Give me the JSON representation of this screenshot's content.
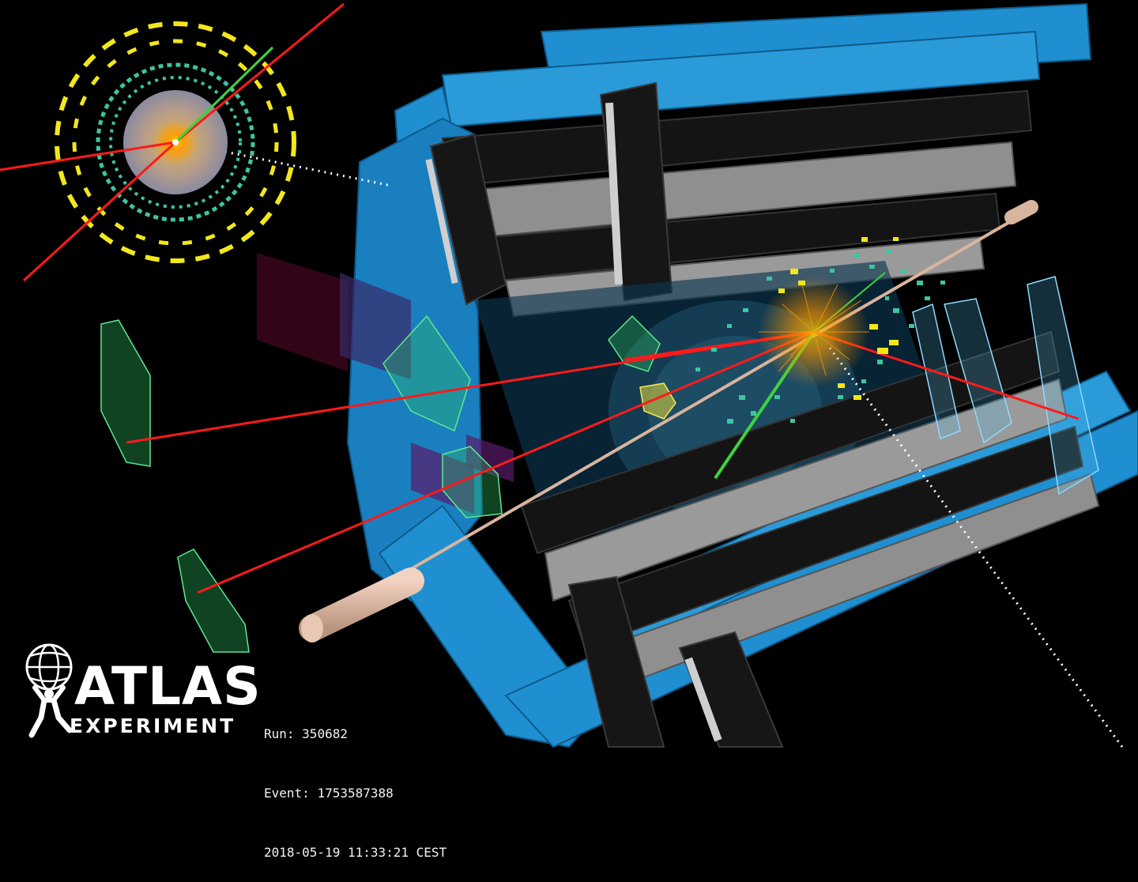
{
  "logo": {
    "name": "ATLAS",
    "subtitle": "EXPERIMENT"
  },
  "event": {
    "run_label": "Run:",
    "run_value": "350682",
    "event_label": "Event:",
    "event_value": "1753587388",
    "datetime": "2018-05-19 11:33:21 CEST"
  },
  "colors": {
    "background": "#000000",
    "detector_blue": "#1f8fd1",
    "support_black": "#141414",
    "support_grey": "#9a9a9a",
    "muon_track": "#ff1a1a",
    "electron_track": "#3dd43d",
    "energy_deposit": "#f2e71c",
    "calo_cell": "#3fc4a2",
    "beam_pipe": "#d9b49e",
    "muon_chamber": "#3bd46e"
  }
}
